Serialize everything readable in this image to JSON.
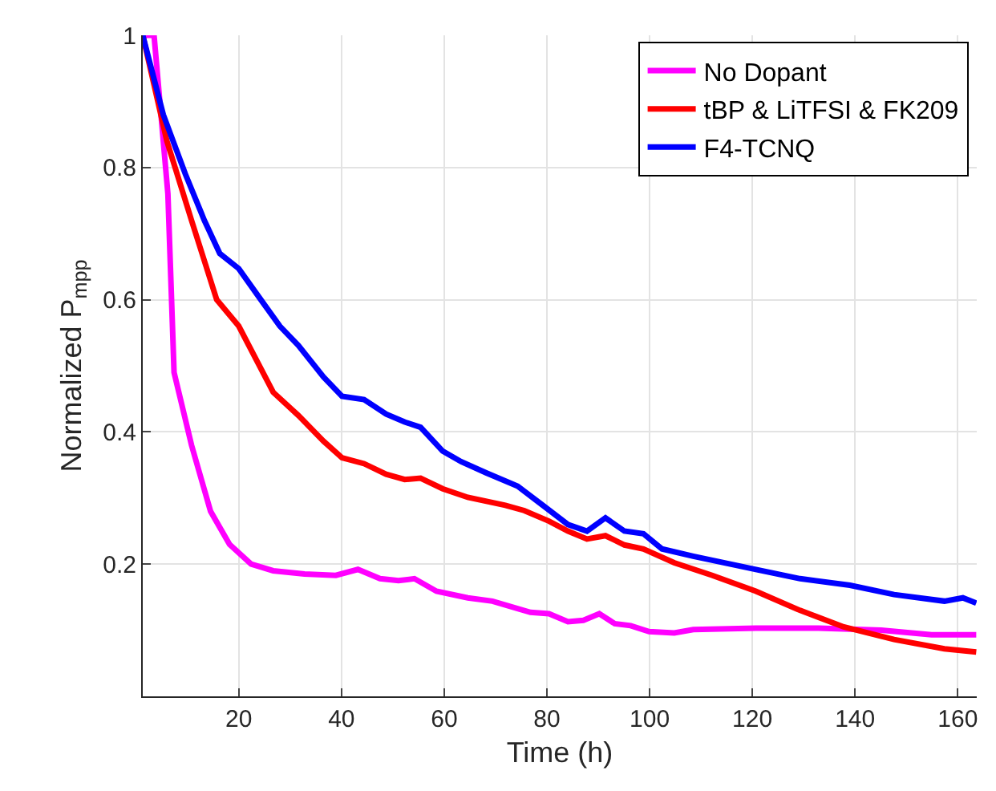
{
  "chart_data": {
    "type": "line",
    "xlabel": "Time (h)",
    "ylabel": "Normalized P$_{mpp}$",
    "xlim": [
      1.3,
      163.7
    ],
    "xticks": [
      20,
      40,
      60,
      80,
      100,
      120,
      140,
      160
    ],
    "ylim": [
      0,
      1
    ],
    "yticks": [
      0.2,
      0.4,
      0.6,
      0.8,
      1
    ],
    "grid": true,
    "legend": "top right",
    "line_style": "solid",
    "marker": "none",
    "series": [
      {
        "name": "No Dopant",
        "color": "#ff00ff",
        "x": [
          1.3,
          3.5,
          6.2,
          7.4,
          10.8,
          14.5,
          18.2,
          22.4,
          26.7,
          32.8,
          38.9,
          43.2,
          47.5,
          51.1,
          54.2,
          58.5,
          64.6,
          69.4,
          76.8,
          80.4,
          84.1,
          87.1,
          90.2,
          93.2,
          96.3,
          99.9,
          104.8,
          108.5,
          120.7,
          132.9,
          145.1,
          154.9,
          163.6
        ],
        "values": [
          1.0,
          1.0,
          0.76,
          0.49,
          0.38,
          0.28,
          0.23,
          0.2,
          0.19,
          0.185,
          0.183,
          0.192,
          0.178,
          0.175,
          0.178,
          0.159,
          0.149,
          0.144,
          0.127,
          0.125,
          0.113,
          0.115,
          0.125,
          0.11,
          0.107,
          0.098,
          0.096,
          0.101,
          0.103,
          0.103,
          0.1,
          0.093,
          0.093
        ]
      },
      {
        "name": "tBP & LiTFSI & FK209",
        "color": "#ff0000",
        "x": [
          1.3,
          6,
          10.8,
          15.7,
          20,
          26.7,
          31.6,
          36.5,
          40.1,
          44.4,
          48.7,
          52.3,
          55.4,
          59.7,
          64.6,
          71.9,
          75.6,
          80.4,
          84.1,
          87.8,
          91.4,
          95.1,
          98.8,
          104.8,
          112.2,
          120.7,
          129.3,
          137.8,
          147.6,
          157.4,
          163.6
        ],
        "values": [
          1.0,
          0.84,
          0.72,
          0.6,
          0.56,
          0.46,
          0.425,
          0.386,
          0.361,
          0.352,
          0.336,
          0.328,
          0.33,
          0.314,
          0.301,
          0.289,
          0.281,
          0.265,
          0.25,
          0.238,
          0.243,
          0.229,
          0.223,
          0.202,
          0.183,
          0.159,
          0.13,
          0.105,
          0.086,
          0.072,
          0.067
        ]
      },
      {
        "name": "F4-TCNQ",
        "color": "#0000ff",
        "x": [
          1.3,
          5.3,
          9.6,
          13.3,
          16.3,
          20,
          24.3,
          28,
          31.6,
          36.5,
          40.1,
          44.4,
          48.7,
          52.3,
          55.4,
          59.7,
          63.3,
          68.2,
          74.3,
          79.2,
          84.1,
          87.8,
          91.4,
          95.1,
          98.8,
          102.4,
          108.5,
          120.7,
          129.3,
          139,
          147.6,
          157.4,
          161,
          163.6
        ],
        "values": [
          1.0,
          0.88,
          0.79,
          0.72,
          0.67,
          0.647,
          0.6,
          0.56,
          0.531,
          0.483,
          0.454,
          0.449,
          0.427,
          0.415,
          0.407,
          0.371,
          0.355,
          0.338,
          0.318,
          0.289,
          0.26,
          0.25,
          0.27,
          0.25,
          0.246,
          0.223,
          0.212,
          0.192,
          0.178,
          0.168,
          0.154,
          0.144,
          0.149,
          0.141
        ]
      }
    ]
  }
}
